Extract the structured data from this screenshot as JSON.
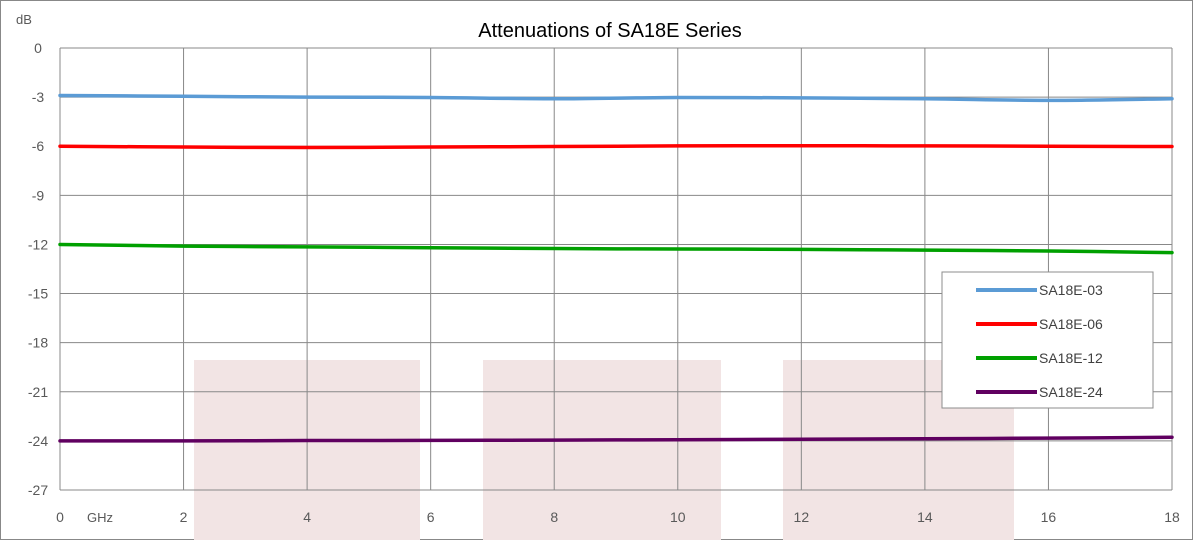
{
  "chart_data": {
    "type": "line",
    "title": "Attenuations of SA18E Series",
    "ylabel": "dB",
    "xlabel": "GHz",
    "xlim": [
      0,
      18
    ],
    "ylim": [
      -27,
      0
    ],
    "x_ticks": [
      0,
      2,
      4,
      6,
      8,
      10,
      12,
      14,
      16,
      18
    ],
    "y_ticks": [
      0,
      -3,
      -6,
      -9,
      -12,
      -15,
      -18,
      -21,
      -24,
      -27
    ],
    "grid": true,
    "legend_position": "right",
    "x": [
      0,
      2,
      4,
      6,
      8,
      10,
      12,
      14,
      16,
      18
    ],
    "series": [
      {
        "name": "SA18E-03",
        "color": "#5b9bd5",
        "values": [
          -2.9,
          -2.95,
          -3.0,
          -3.02,
          -3.1,
          -3.02,
          -3.05,
          -3.1,
          -3.2,
          -3.1
        ]
      },
      {
        "name": "SA18E-06",
        "color": "#ff0000",
        "values": [
          -6.0,
          -6.05,
          -6.08,
          -6.05,
          -6.02,
          -5.98,
          -5.97,
          -5.98,
          -6.0,
          -6.02
        ]
      },
      {
        "name": "SA18E-12",
        "color": "#00a000",
        "values": [
          -12.0,
          -12.1,
          -12.15,
          -12.2,
          -12.25,
          -12.28,
          -12.3,
          -12.35,
          -12.4,
          -12.5
        ]
      },
      {
        "name": "SA18E-24",
        "color": "#600060",
        "values": [
          -24.0,
          -24.0,
          -23.98,
          -23.97,
          -23.95,
          -23.93,
          -23.9,
          -23.87,
          -23.83,
          -23.78
        ]
      }
    ]
  }
}
